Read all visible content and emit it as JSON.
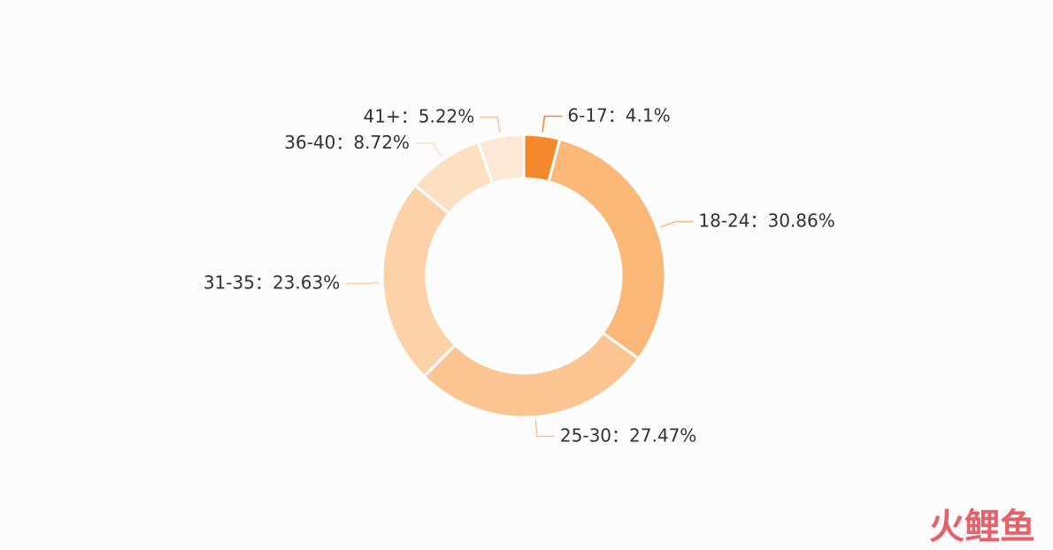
{
  "chart_data": {
    "type": "donut",
    "categories": [
      "6-17",
      "18-24",
      "25-30",
      "31-35",
      "36-40",
      "41+"
    ],
    "values": [
      4.1,
      30.86,
      27.47,
      23.63,
      8.72,
      5.22
    ],
    "value_labels": [
      "4.1%",
      "30.86%",
      "27.47%",
      "23.63%",
      "8.72%",
      "5.22%"
    ],
    "label_separator": "：",
    "colors": [
      "#f5882a",
      "#fbb877",
      "#fcc491",
      "#fdd2a9",
      "#fddfc1",
      "#fde8d6"
    ],
    "watermark": "火鲤鱼"
  }
}
